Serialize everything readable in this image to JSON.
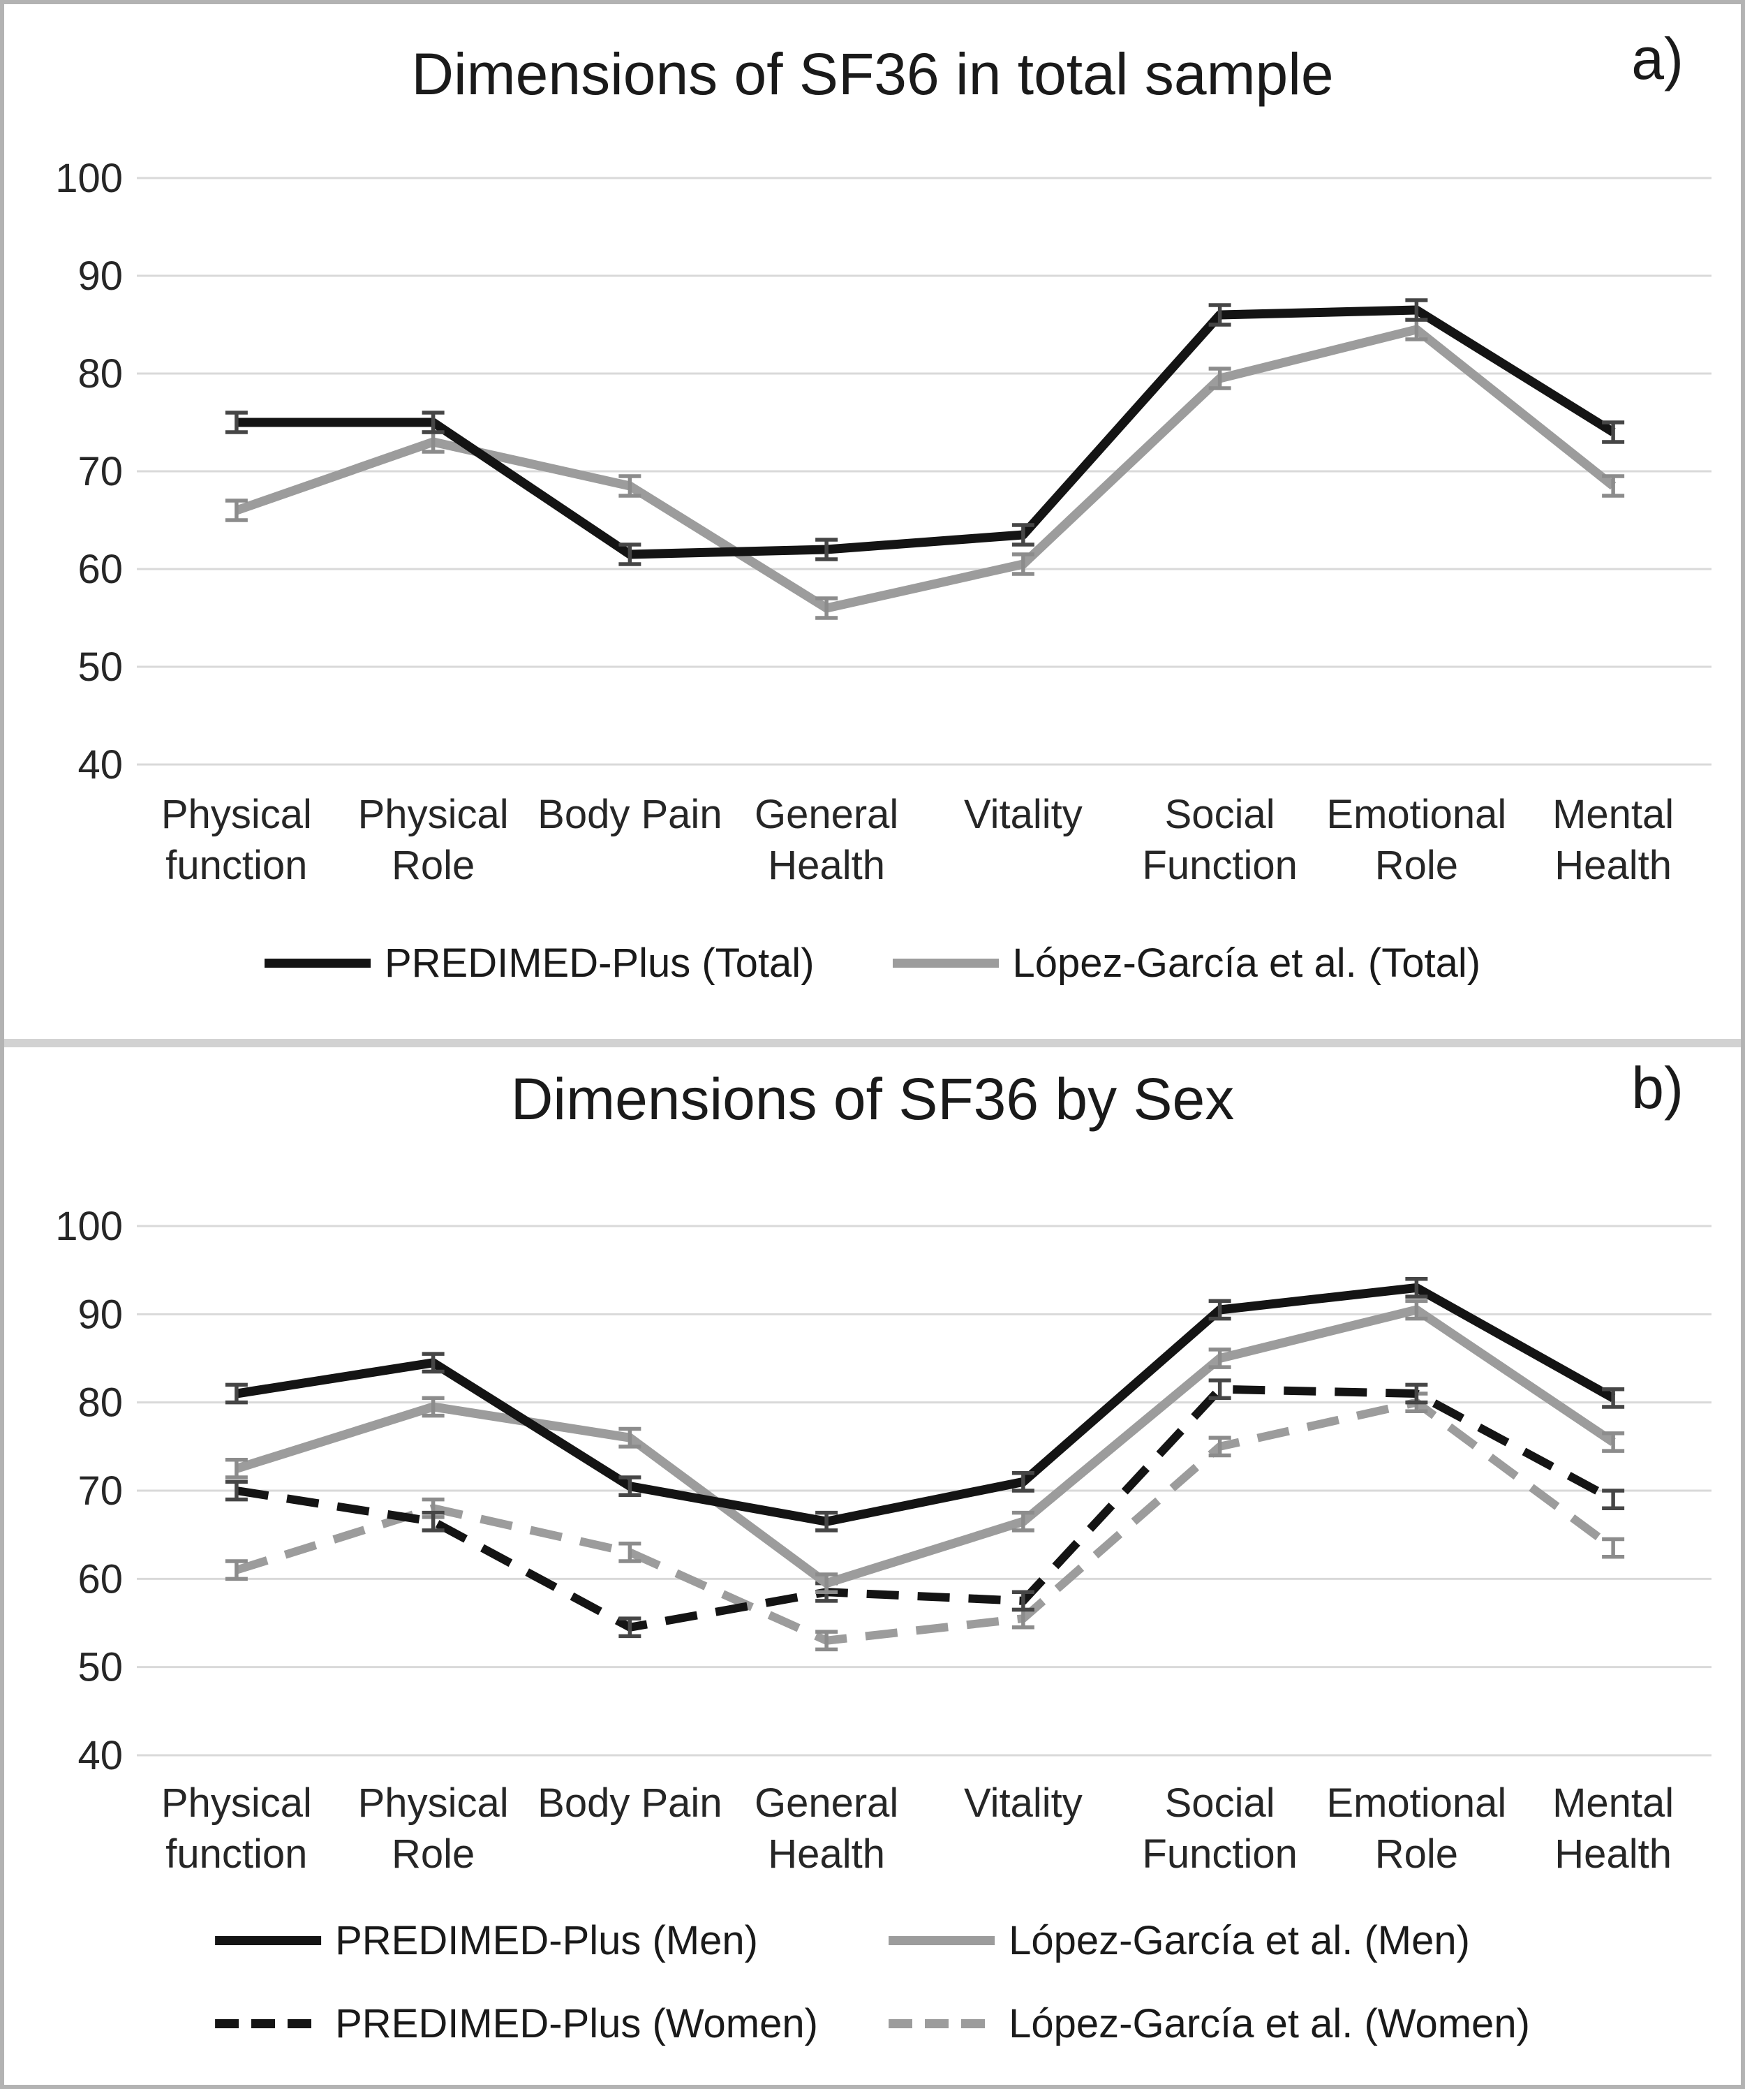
{
  "page": {
    "background_color": "#ffffff",
    "frame_color": "#b3b3b3",
    "divider_color": "#d2d2d2"
  },
  "panels": [
    {
      "corner_label": "a)",
      "title": "Dimensions of SF36 in total sample"
    },
    {
      "corner_label": "b)",
      "title": "Dimensions of SF36 by Sex"
    }
  ],
  "chart_data": [
    {
      "type": "line",
      "title": "Dimensions of SF36 in total sample",
      "xlabel": "",
      "ylabel": "",
      "ylim": [
        40,
        100
      ],
      "yticks": [
        100,
        90,
        80,
        70,
        60,
        50,
        40
      ],
      "grid": true,
      "gridline_color": "#d9d9d9",
      "error_bars": true,
      "legend_position": "bottom",
      "categories": [
        [
          "Physical",
          "function"
        ],
        [
          "Physical",
          "Role"
        ],
        [
          "Body Pain"
        ],
        [
          "General",
          "Health"
        ],
        [
          "Vitality"
        ],
        [
          "Social",
          "Function"
        ],
        [
          "Emotional",
          "Role"
        ],
        [
          "Mental",
          "Health"
        ]
      ],
      "series": [
        {
          "name": "PREDIMED-Plus (Total)",
          "color": "#141414",
          "line_style": "solid",
          "error_color": "#464646",
          "error": 1,
          "values": [
            75,
            75,
            61.5,
            62,
            63.5,
            86,
            86.5,
            74
          ]
        },
        {
          "name": "López-García et al. (Total)",
          "color": "#9c9c9c",
          "line_style": "solid",
          "error_color": "#8c8c8c",
          "error": 1,
          "values": [
            66,
            73,
            68.5,
            56,
            60.5,
            79.5,
            84.5,
            68.5
          ]
        }
      ]
    },
    {
      "type": "line",
      "title": "Dimensions of SF36 by Sex",
      "xlabel": "",
      "ylabel": "",
      "ylim": [
        40,
        100
      ],
      "yticks": [
        100,
        90,
        80,
        70,
        60,
        50,
        40
      ],
      "grid": true,
      "gridline_color": "#d9d9d9",
      "error_bars": true,
      "legend_position": "bottom",
      "categories": [
        [
          "Physical",
          "function"
        ],
        [
          "Physical",
          "Role"
        ],
        [
          "Body Pain"
        ],
        [
          "General",
          "Health"
        ],
        [
          "Vitality"
        ],
        [
          "Social",
          "Function"
        ],
        [
          "Emotional",
          "Role"
        ],
        [
          "Mental",
          "Health"
        ]
      ],
      "series": [
        {
          "name": "PREDIMED-Plus (Men)",
          "color": "#141414",
          "line_style": "solid",
          "error_color": "#464646",
          "error": 1,
          "values": [
            81,
            84.5,
            70.5,
            66.5,
            71,
            90.5,
            93,
            80.5
          ]
        },
        {
          "name": "López-García et al. (Men)",
          "color": "#9c9c9c",
          "line_style": "solid",
          "error_color": "#8c8c8c",
          "error": 1,
          "values": [
            72.5,
            79.5,
            76,
            59.5,
            66.5,
            85,
            90.5,
            75.5
          ]
        },
        {
          "name": "PREDIMED-Plus (Women)",
          "color": "#141414",
          "line_style": "dashed",
          "error_color": "#464646",
          "error": 1,
          "values": [
            70,
            66.5,
            54.5,
            58.5,
            57.5,
            81.5,
            81,
            69
          ]
        },
        {
          "name": "López-García et al. (Women)",
          "color": "#9c9c9c",
          "line_style": "dashed",
          "error_color": "#8c8c8c",
          "error": 1,
          "values": [
            61,
            68,
            63,
            53,
            55.5,
            75,
            80,
            63.5
          ]
        }
      ]
    }
  ]
}
